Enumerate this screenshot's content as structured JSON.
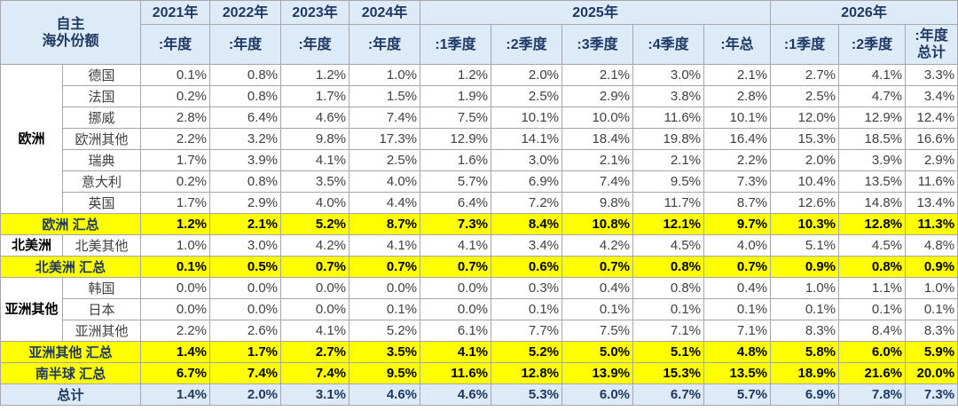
{
  "header": {
    "corner": [
      "自主",
      "海外份额"
    ],
    "years": [
      "2021年",
      "2022年",
      "2023年",
      "2024年",
      "2025年",
      "2026年"
    ],
    "columns": [
      ":年度",
      ":年度",
      ":年度",
      ":年度",
      ":1季度",
      ":2季度",
      ":3季度",
      ":4季度",
      ":年总",
      ":1季度",
      ":2季度",
      ":年度\n总计"
    ]
  },
  "groups": [
    {
      "region": "欧洲",
      "rows": [
        {
          "label": "德国",
          "values": [
            "0.1%",
            "0.8%",
            "1.2%",
            "1.0%",
            "1.2%",
            "2.0%",
            "2.1%",
            "3.0%",
            "2.1%",
            "2.7%",
            "4.1%",
            "3.3%"
          ]
        },
        {
          "label": "法国",
          "values": [
            "0.2%",
            "0.8%",
            "1.7%",
            "1.5%",
            "1.9%",
            "2.5%",
            "2.9%",
            "3.8%",
            "2.8%",
            "2.5%",
            "4.7%",
            "3.4%"
          ]
        },
        {
          "label": "挪威",
          "values": [
            "2.8%",
            "6.4%",
            "4.6%",
            "7.4%",
            "7.5%",
            "10.1%",
            "10.0%",
            "11.6%",
            "10.1%",
            "12.0%",
            "12.9%",
            "12.4%"
          ]
        },
        {
          "label": "欧洲其他",
          "values": [
            "2.2%",
            "3.2%",
            "9.8%",
            "17.3%",
            "12.9%",
            "14.1%",
            "18.4%",
            "19.8%",
            "16.4%",
            "15.3%",
            "18.5%",
            "16.6%"
          ]
        },
        {
          "label": "瑞典",
          "values": [
            "1.7%",
            "3.9%",
            "4.1%",
            "2.5%",
            "1.6%",
            "3.0%",
            "2.1%",
            "2.1%",
            "2.2%",
            "2.0%",
            "3.9%",
            "2.9%"
          ]
        },
        {
          "label": "意大利",
          "values": [
            "0.2%",
            "0.8%",
            "3.5%",
            "4.0%",
            "5.7%",
            "6.9%",
            "7.4%",
            "9.5%",
            "7.3%",
            "10.4%",
            "13.5%",
            "11.6%"
          ]
        },
        {
          "label": "英国",
          "values": [
            "1.7%",
            "2.9%",
            "4.0%",
            "4.4%",
            "6.4%",
            "7.2%",
            "9.8%",
            "11.7%",
            "8.7%",
            "12.6%",
            "14.8%",
            "13.4%"
          ]
        }
      ],
      "total": {
        "label": "欧洲 汇总",
        "values": [
          "1.2%",
          "2.1%",
          "5.2%",
          "8.7%",
          "7.3%",
          "8.4%",
          "10.8%",
          "12.1%",
          "9.7%",
          "10.3%",
          "12.8%",
          "11.3%"
        ]
      }
    },
    {
      "region": "北美洲",
      "rows": [
        {
          "label": "北美其他",
          "values": [
            "1.0%",
            "3.0%",
            "4.2%",
            "4.1%",
            "4.1%",
            "3.4%",
            "4.2%",
            "4.5%",
            "4.0%",
            "5.1%",
            "4.5%",
            "4.8%"
          ]
        }
      ],
      "total": {
        "label": "北美洲 汇总",
        "values": [
          "0.1%",
          "0.5%",
          "0.7%",
          "0.7%",
          "0.7%",
          "0.6%",
          "0.7%",
          "0.8%",
          "0.7%",
          "0.9%",
          "0.8%",
          "0.9%"
        ]
      }
    },
    {
      "region": "亚洲其他",
      "rows": [
        {
          "label": "韩国",
          "values": [
            "0.0%",
            "0.0%",
            "0.0%",
            "0.0%",
            "0.0%",
            "0.3%",
            "0.4%",
            "0.8%",
            "0.4%",
            "1.0%",
            "1.1%",
            "1.0%"
          ]
        },
        {
          "label": "日本",
          "values": [
            "0.0%",
            "0.0%",
            "0.0%",
            "0.1%",
            "0.0%",
            "0.1%",
            "0.1%",
            "0.1%",
            "0.1%",
            "0.1%",
            "0.1%",
            "0.1%"
          ]
        },
        {
          "label": "亚洲其他",
          "values": [
            "2.2%",
            "2.6%",
            "4.1%",
            "5.2%",
            "6.1%",
            "7.7%",
            "7.5%",
            "7.1%",
            "7.1%",
            "8.3%",
            "8.4%",
            "8.3%"
          ]
        }
      ],
      "total": {
        "label": "亚洲其他 汇总",
        "values": [
          "1.4%",
          "1.7%",
          "2.7%",
          "3.5%",
          "4.1%",
          "5.2%",
          "5.0%",
          "5.1%",
          "4.8%",
          "5.8%",
          "6.0%",
          "5.9%"
        ]
      }
    }
  ],
  "summary_rows": [
    {
      "label": "南半球 汇总",
      "values": [
        "6.7%",
        "7.4%",
        "7.4%",
        "9.5%",
        "11.6%",
        "12.8%",
        "13.9%",
        "15.3%",
        "13.5%",
        "18.9%",
        "21.6%",
        "20.0%"
      ]
    },
    {
      "label": "总计",
      "values": [
        "1.4%",
        "2.0%",
        "3.1%",
        "4.6%",
        "4.6%",
        "5.3%",
        "6.0%",
        "6.7%",
        "5.7%",
        "6.9%",
        "7.8%",
        "7.3%"
      ]
    }
  ]
}
